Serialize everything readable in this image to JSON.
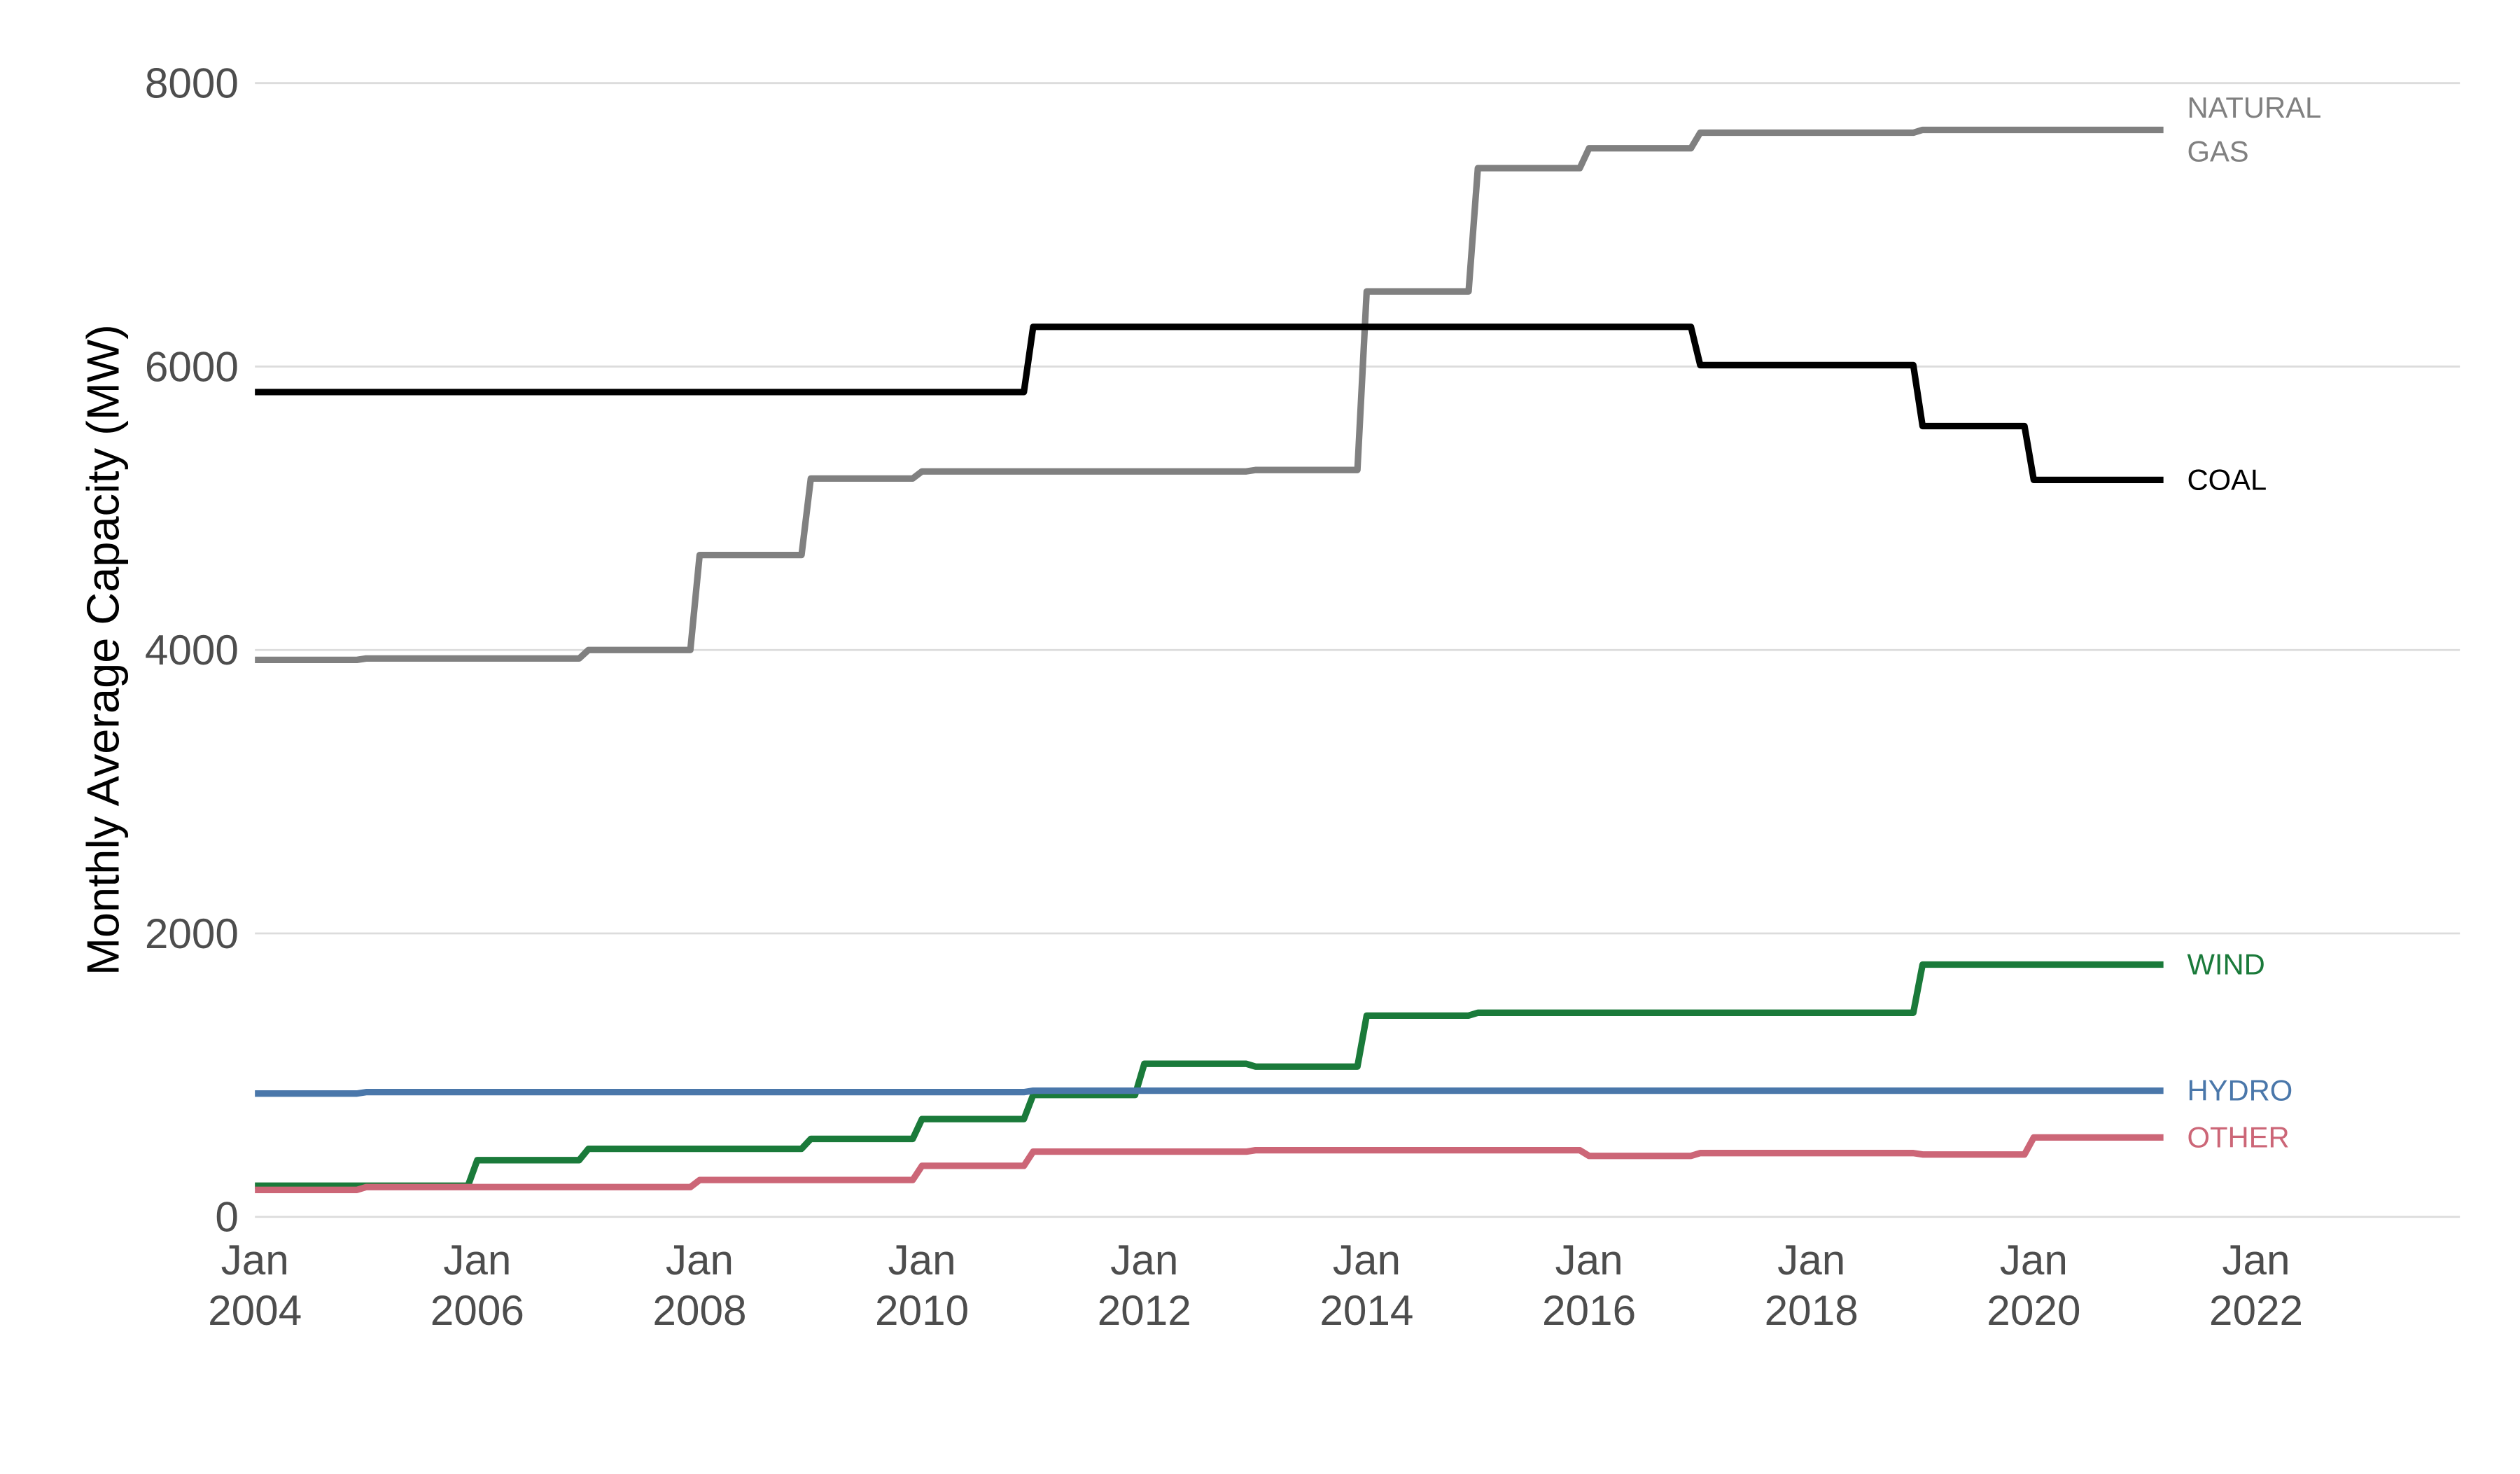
{
  "chart_data": {
    "type": "line",
    "y_label": "Monthly Average Capacity (MW)",
    "x": [
      "2004-01",
      "2004-12",
      "2005-01",
      "2005-12",
      "2006-01",
      "2006-12",
      "2007-01",
      "2007-12",
      "2008-01",
      "2008-12",
      "2009-01",
      "2009-12",
      "2010-01",
      "2010-12",
      "2011-01",
      "2011-12",
      "2012-01",
      "2012-12",
      "2013-01",
      "2013-12",
      "2014-01",
      "2014-12",
      "2015-01",
      "2015-12",
      "2016-01",
      "2016-12",
      "2017-01",
      "2017-12",
      "2018-01",
      "2018-12",
      "2019-01",
      "2019-12",
      "2020-01",
      "2020-12",
      "2021-01",
      "2021-03"
    ],
    "series": [
      {
        "name": "NATURAL\nGAS",
        "color": "#808080",
        "values": [
          3930,
          3930,
          3940,
          3940,
          3940,
          3940,
          4000,
          4000,
          4670,
          4670,
          5210,
          5210,
          5260,
          5260,
          5260,
          5260,
          5260,
          5260,
          5270,
          5270,
          6530,
          6530,
          7400,
          7400,
          7540,
          7540,
          7650,
          7650,
          7650,
          7650,
          7670,
          7670,
          7670,
          7670,
          7670,
          7670
        ]
      },
      {
        "name": "COAL",
        "color": "#000000",
        "values": [
          5820,
          5820,
          5820,
          5820,
          5820,
          5820,
          5820,
          5820,
          5820,
          5820,
          5820,
          5820,
          5820,
          5820,
          6280,
          6280,
          6280,
          6280,
          6280,
          6280,
          6280,
          6280,
          6280,
          6280,
          6280,
          6280,
          6010,
          6010,
          6010,
          6010,
          5580,
          5580,
          5200,
          5200,
          5200,
          5200
        ]
      },
      {
        "name": "WIND",
        "color": "#1a7a3a",
        "values": [
          220,
          220,
          220,
          220,
          400,
          400,
          480,
          480,
          480,
          480,
          550,
          550,
          690,
          690,
          860,
          860,
          1080,
          1080,
          1060,
          1060,
          1420,
          1420,
          1440,
          1440,
          1440,
          1440,
          1440,
          1440,
          1440,
          1440,
          1780,
          1780,
          1780,
          1780,
          1780,
          1780
        ]
      },
      {
        "name": "HYDRO",
        "color": "#4a77aa",
        "values": [
          870,
          870,
          880,
          880,
          880,
          880,
          880,
          880,
          880,
          880,
          880,
          880,
          880,
          880,
          890,
          890,
          890,
          890,
          890,
          890,
          890,
          890,
          890,
          890,
          890,
          890,
          890,
          890,
          890,
          890,
          890,
          890,
          890,
          890,
          890,
          890
        ]
      },
      {
        "name": "OTHER",
        "color": "#cc6677",
        "values": [
          190,
          190,
          210,
          210,
          210,
          210,
          210,
          210,
          260,
          260,
          260,
          260,
          360,
          360,
          460,
          460,
          460,
          460,
          470,
          470,
          470,
          470,
          470,
          470,
          430,
          430,
          450,
          450,
          450,
          450,
          440,
          440,
          560,
          560,
          560,
          560
        ]
      }
    ],
    "xlim": [
      "2004-01",
      "2023-11"
    ],
    "xticks": [
      {
        "value": "2004-01",
        "label": "Jan\n2004"
      },
      {
        "value": "2006-01",
        "label": "Jan\n2006"
      },
      {
        "value": "2008-01",
        "label": "Jan\n2008"
      },
      {
        "value": "2010-01",
        "label": "Jan\n2010"
      },
      {
        "value": "2012-01",
        "label": "Jan\n2012"
      },
      {
        "value": "2014-01",
        "label": "Jan\n2014"
      },
      {
        "value": "2016-01",
        "label": "Jan\n2016"
      },
      {
        "value": "2018-01",
        "label": "Jan\n2018"
      },
      {
        "value": "2020-01",
        "label": "Jan\n2020"
      },
      {
        "value": "2022-01",
        "label": "Jan\n2022"
      }
    ],
    "ylim": [
      0,
      8000
    ],
    "yticks": [
      0,
      2000,
      4000,
      6000,
      8000
    ],
    "grid": true
  }
}
